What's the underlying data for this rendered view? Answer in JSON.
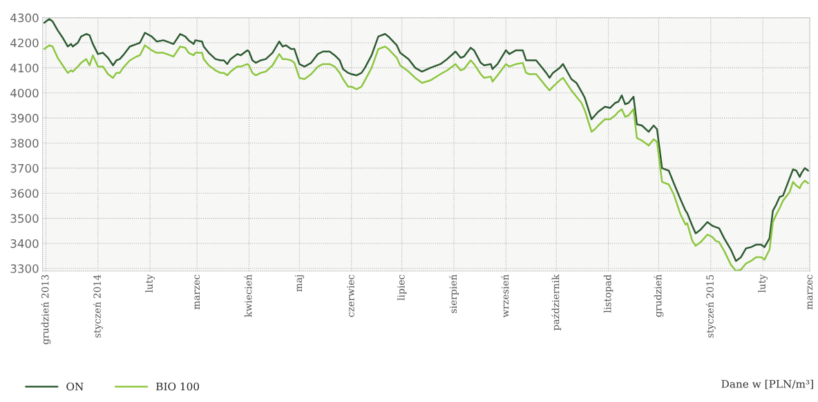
{
  "chart_data": {
    "type": "line",
    "x": [
      "2013-11-30",
      "2013-12-03",
      "2013-12-05",
      "2013-12-08",
      "2013-12-11",
      "2013-12-14",
      "2013-12-16",
      "2013-12-17",
      "2013-12-20",
      "2013-12-22",
      "2013-12-25",
      "2013-12-27",
      "2013-12-29",
      "2014-01-01",
      "2014-01-04",
      "2014-01-07",
      "2014-01-10",
      "2014-01-12",
      "2014-01-14",
      "2014-01-16",
      "2014-01-20",
      "2014-01-24",
      "2014-01-26",
      "2014-01-29",
      "2014-02-02",
      "2014-02-05",
      "2014-02-09",
      "2014-02-11",
      "2014-02-15",
      "2014-02-19",
      "2014-02-22",
      "2014-02-24",
      "2014-02-27",
      "2014-02-28",
      "2014-03-04",
      "2014-03-05",
      "2014-03-08",
      "2014-03-12",
      "2014-03-15",
      "2014-03-17",
      "2014-03-19",
      "2014-03-21",
      "2014-03-25",
      "2014-03-27",
      "2014-03-31",
      "2014-04-01",
      "2014-04-03",
      "2014-04-05",
      "2014-04-08",
      "2014-04-11",
      "2014-04-15",
      "2014-04-19",
      "2014-04-21",
      "2014-04-23",
      "2014-04-26",
      "2014-04-28",
      "2014-05-01",
      "2014-05-04",
      "2014-05-08",
      "2014-05-12",
      "2014-05-15",
      "2014-05-19",
      "2014-05-22",
      "2014-05-25",
      "2014-05-27",
      "2014-05-30",
      "2014-06-01",
      "2014-06-04",
      "2014-06-07",
      "2014-06-09",
      "2014-06-13",
      "2014-06-17",
      "2014-06-21",
      "2014-06-23",
      "2014-06-28",
      "2014-06-30",
      "2014-07-05",
      "2014-07-09",
      "2014-07-13",
      "2014-07-18",
      "2014-07-24",
      "2014-07-28",
      "2014-08-02",
      "2014-08-05",
      "2014-08-07",
      "2014-08-11",
      "2014-08-13",
      "2014-08-17",
      "2014-08-19",
      "2014-08-23",
      "2014-08-24",
      "2014-08-27",
      "2014-09-01",
      "2014-09-03",
      "2014-09-07",
      "2014-09-11",
      "2014-09-13",
      "2014-09-15",
      "2014-09-19",
      "2014-09-22",
      "2014-09-25",
      "2014-09-27",
      "2014-09-29",
      "2014-10-03",
      "2014-10-05",
      "2014-10-10",
      "2014-10-13",
      "2014-10-16",
      "2014-10-18",
      "2014-10-22",
      "2014-10-24",
      "2014-10-26",
      "2014-10-30",
      "2014-11-02",
      "2014-11-05",
      "2014-11-07",
      "2014-11-09",
      "2014-11-11",
      "2014-11-13",
      "2014-11-16",
      "2014-11-18",
      "2014-11-21",
      "2014-11-25",
      "2014-11-28",
      "2014-11-30",
      "2014-12-03",
      "2014-12-07",
      "2014-12-10",
      "2014-12-14",
      "2014-12-17",
      "2014-12-18",
      "2014-12-21",
      "2014-12-23",
      "2014-12-26",
      "2014-12-30",
      "2015-01-02",
      "2015-01-04",
      "2015-01-06",
      "2015-01-09",
      "2015-01-13",
      "2015-01-16",
      "2015-01-19",
      "2015-01-22",
      "2015-01-25",
      "2015-01-28",
      "2015-01-31",
      "2015-02-02",
      "2015-02-05",
      "2015-02-07",
      "2015-02-09",
      "2015-02-11",
      "2015-02-13",
      "2015-02-17",
      "2015-02-19",
      "2015-02-21",
      "2015-02-23",
      "2015-02-24",
      "2015-02-26",
      "2015-02-28"
    ],
    "series": [
      {
        "name": "ON",
        "color": "#2d5a32",
        "values": [
          4280,
          4295,
          4285,
          4250,
          4220,
          4185,
          4195,
          4185,
          4200,
          4225,
          4235,
          4230,
          4195,
          4155,
          4160,
          4140,
          4110,
          4130,
          4135,
          4150,
          4185,
          4195,
          4200,
          4240,
          4225,
          4205,
          4210,
          4205,
          4195,
          4235,
          4225,
          4210,
          4195,
          4210,
          4205,
          4185,
          4160,
          4135,
          4130,
          4130,
          4115,
          4135,
          4155,
          4150,
          4170,
          4165,
          4130,
          4120,
          4130,
          4135,
          4160,
          4205,
          4185,
          4190,
          4175,
          4175,
          4115,
          4105,
          4120,
          4155,
          4165,
          4165,
          4150,
          4130,
          4095,
          4080,
          4075,
          4070,
          4080,
          4100,
          4150,
          4225,
          4235,
          4225,
          4190,
          4160,
          4135,
          4100,
          4085,
          4100,
          4115,
          4135,
          4165,
          4140,
          4145,
          4180,
          4170,
          4120,
          4110,
          4115,
          4095,
          4115,
          4170,
          4155,
          4170,
          4170,
          4130,
          4130,
          4130,
          4105,
          4080,
          4060,
          4080,
          4100,
          4115,
          4055,
          4040,
          4005,
          3980,
          3895,
          3910,
          3925,
          3945,
          3940,
          3960,
          3965,
          3990,
          3955,
          3960,
          3985,
          3875,
          3870,
          3845,
          3870,
          3855,
          3700,
          3690,
          3640,
          3575,
          3530,
          3520,
          3470,
          3440,
          3455,
          3485,
          3470,
          3465,
          3460,
          3420,
          3375,
          3330,
          3345,
          3380,
          3385,
          3395,
          3395,
          3385,
          3420,
          3530,
          3555,
          3585,
          3590,
          3660,
          3695,
          3690,
          3665,
          3680,
          3700,
          3690
        ]
      },
      {
        "name": "BIO 100",
        "color": "#8cc63f",
        "values": [
          4175,
          4190,
          4185,
          4140,
          4110,
          4080,
          4090,
          4085,
          4105,
          4120,
          4135,
          4110,
          4150,
          4105,
          4105,
          4075,
          4060,
          4080,
          4080,
          4100,
          4130,
          4145,
          4150,
          4190,
          4170,
          4160,
          4160,
          4155,
          4145,
          4185,
          4180,
          4160,
          4150,
          4160,
          4160,
          4135,
          4110,
          4090,
          4080,
          4080,
          4070,
          4085,
          4105,
          4105,
          4115,
          4110,
          4080,
          4070,
          4080,
          4085,
          4110,
          4155,
          4135,
          4135,
          4130,
          4120,
          4060,
          4055,
          4075,
          4105,
          4115,
          4115,
          4105,
          4080,
          4055,
          4025,
          4025,
          4015,
          4025,
          4050,
          4100,
          4175,
          4185,
          4175,
          4140,
          4110,
          4085,
          4060,
          4040,
          4050,
          4075,
          4090,
          4115,
          4090,
          4095,
          4130,
          4115,
          4075,
          4060,
          4065,
          4045,
          4070,
          4115,
          4105,
          4115,
          4120,
          4080,
          4075,
          4075,
          4050,
          4025,
          4010,
          4025,
          4050,
          4060,
          4010,
          3985,
          3960,
          3930,
          3845,
          3855,
          3870,
          3895,
          3895,
          3910,
          3925,
          3935,
          3905,
          3910,
          3935,
          3820,
          3810,
          3790,
          3815,
          3805,
          3645,
          3635,
          3595,
          3515,
          3475,
          3480,
          3410,
          3390,
          3405,
          3435,
          3425,
          3410,
          3405,
          3370,
          3315,
          3290,
          3295,
          3320,
          3330,
          3345,
          3345,
          3335,
          3375,
          3485,
          3515,
          3540,
          3570,
          3605,
          3645,
          3630,
          3620,
          3635,
          3650,
          3640
        ]
      }
    ],
    "xlim": [
      "2013-11-29",
      "2015-03-01"
    ],
    "xticks": [
      {
        "value": "2013-12-01",
        "label": "grudzień 2013"
      },
      {
        "value": "2014-01-01",
        "label": "styczeń 2014"
      },
      {
        "value": "2014-02-01",
        "label": "luty"
      },
      {
        "value": "2014-03-01",
        "label": "marzec"
      },
      {
        "value": "2014-04-01",
        "label": "kwiecień"
      },
      {
        "value": "2014-05-01",
        "label": "maj"
      },
      {
        "value": "2014-06-01",
        "label": "czerwiec"
      },
      {
        "value": "2014-07-01",
        "label": "lipiec"
      },
      {
        "value": "2014-08-01",
        "label": "sierpień"
      },
      {
        "value": "2014-09-01",
        "label": "wrzesień"
      },
      {
        "value": "2014-10-01",
        "label": "październik"
      },
      {
        "value": "2014-11-01",
        "label": "listopad"
      },
      {
        "value": "2014-12-01",
        "label": "grudzień"
      },
      {
        "value": "2015-01-01",
        "label": "styczeń 2015"
      },
      {
        "value": "2015-02-01",
        "label": "luty"
      },
      {
        "value": "2015-03-01",
        "label": "marzec"
      }
    ],
    "ylim": [
      3290,
      4300
    ],
    "yticks": [
      3300,
      3400,
      3500,
      3600,
      3700,
      3800,
      3900,
      4000,
      4100,
      4200,
      4300
    ],
    "grid": true,
    "legend": "bottom left",
    "line_style": "solid",
    "marker": "none",
    "annotations": [
      "Dane w [PLN/m³]"
    ]
  }
}
